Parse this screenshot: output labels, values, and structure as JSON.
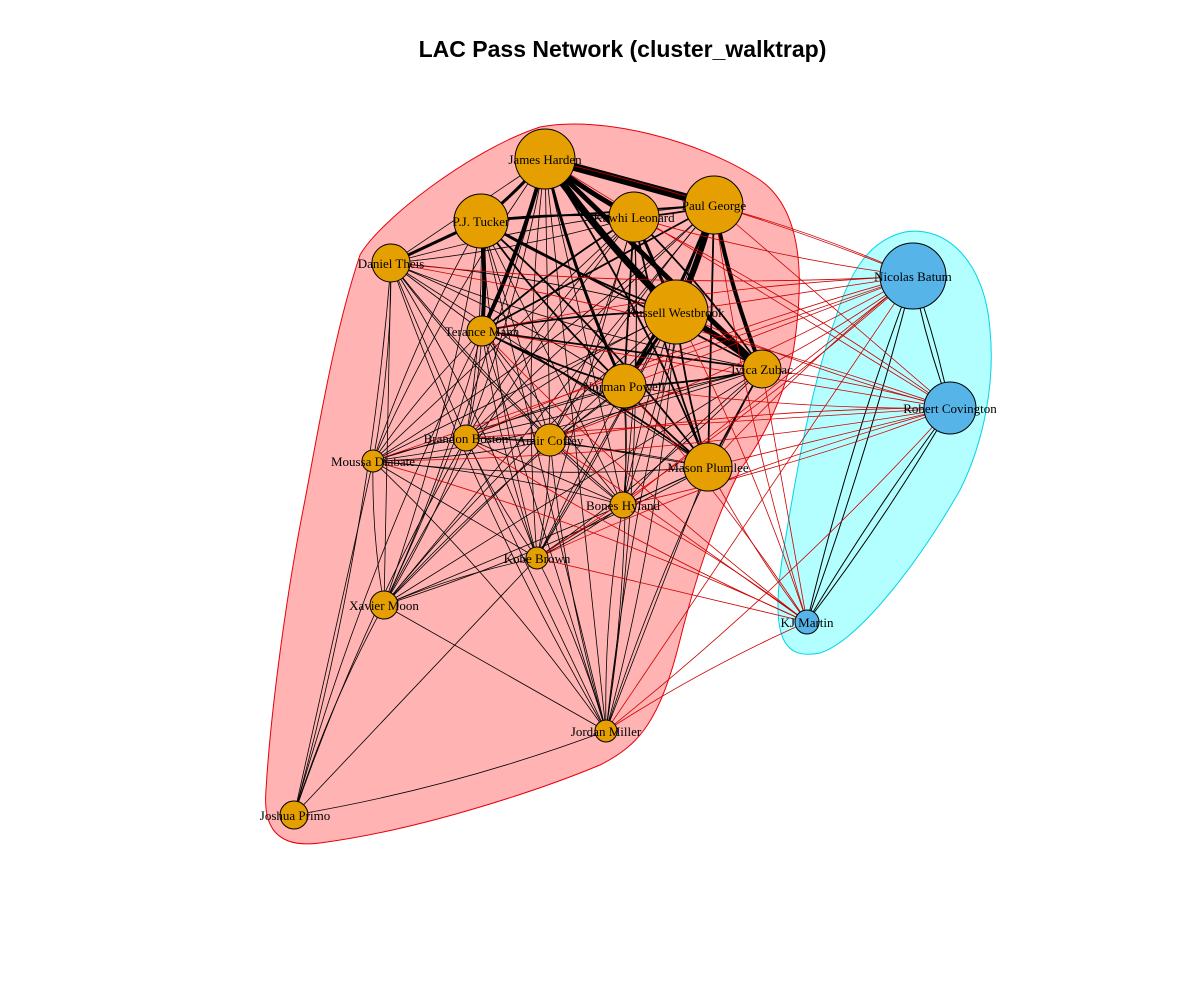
{
  "title": "LAC Pass Network (cluster_walktrap)",
  "colors": {
    "cluster_1_fill": "#FFB3B3",
    "cluster_1_border": "#E8000B",
    "cluster_2_fill": "#B3FFFF",
    "cluster_2_border": "#00D4E8",
    "cluster_1_node": "#E69F00",
    "cluster_2_node": "#56B4E9",
    "intra_edge": "#000000",
    "inter_edge": "#CC0000"
  },
  "nodes": [
    {
      "id": "harden",
      "label": "James Harden",
      "cluster": 1
    },
    {
      "id": "george",
      "label": "Paul George",
      "cluster": 1
    },
    {
      "id": "leonard",
      "label": "Kawhi Leonard",
      "cluster": 1
    },
    {
      "id": "tucker",
      "label": "P.J. Tucker",
      "cluster": 1
    },
    {
      "id": "theis",
      "label": "Daniel Theis",
      "cluster": 1
    },
    {
      "id": "westbrook",
      "label": "Russell Westbrook",
      "cluster": 1
    },
    {
      "id": "mann",
      "label": "Terance Mann",
      "cluster": 1
    },
    {
      "id": "zubac",
      "label": "Ivica Zubac",
      "cluster": 1
    },
    {
      "id": "powell",
      "label": "Norman Powell",
      "cluster": 1
    },
    {
      "id": "boston",
      "label": "Brandon Boston",
      "cluster": 1
    },
    {
      "id": "coffey",
      "label": "Amir Coffey",
      "cluster": 1
    },
    {
      "id": "diabate",
      "label": "Moussa Diabate",
      "cluster": 1
    },
    {
      "id": "plumlee",
      "label": "Mason Plumlee",
      "cluster": 1
    },
    {
      "id": "hyland",
      "label": "Bones Hyland",
      "cluster": 1
    },
    {
      "id": "brown",
      "label": "Kobe Brown",
      "cluster": 1
    },
    {
      "id": "moon",
      "label": "Xavier Moon",
      "cluster": 1
    },
    {
      "id": "miller",
      "label": "Jordan Miller",
      "cluster": 1
    },
    {
      "id": "primo",
      "label": "Joshua Primo",
      "cluster": 1
    },
    {
      "id": "batum",
      "label": "Nicolas Batum",
      "cluster": 2
    },
    {
      "id": "covington",
      "label": "Robert Covington",
      "cluster": 2
    },
    {
      "id": "martin",
      "label": "KJ Martin",
      "cluster": 2
    }
  ]
}
